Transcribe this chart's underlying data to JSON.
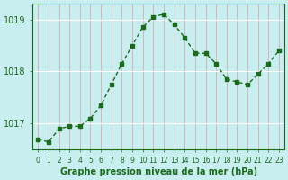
{
  "x": [
    0,
    1,
    2,
    3,
    4,
    5,
    6,
    7,
    8,
    9,
    10,
    11,
    12,
    13,
    14,
    15,
    16,
    17,
    18,
    19,
    20,
    21,
    22,
    23
  ],
  "y": [
    1016.7,
    1016.65,
    1016.9,
    1016.95,
    1016.95,
    1017.1,
    1017.35,
    1017.75,
    1018.15,
    1018.5,
    1018.85,
    1019.05,
    1019.1,
    1018.9,
    1018.65,
    1018.35,
    1018.35,
    1018.15,
    1017.85,
    1017.8,
    1017.75,
    1017.95,
    1018.15,
    1018.4
  ],
  "line_color": "#1a6b1a",
  "marker_color": "#1a6b1a",
  "bg_color": "#c8eef0",
  "grid_color_major": "#ffffff",
  "grid_color_minor": "#d0e8ea",
  "xlabel": "Graphe pression niveau de la mer (hPa)",
  "xlabel_color": "#1a6b1a",
  "tick_color": "#1a6b1a",
  "ylim": [
    1016.5,
    1019.3
  ],
  "yticks": [
    1017,
    1018,
    1019
  ],
  "xlim": [
    -0.5,
    23.5
  ]
}
